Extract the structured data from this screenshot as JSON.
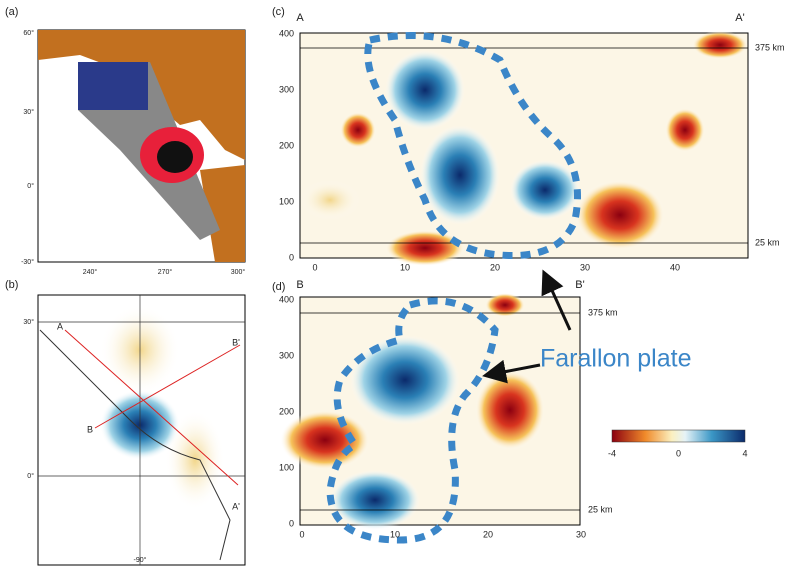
{
  "panels": {
    "a": {
      "label": "(a)",
      "yticks": [
        "60°",
        "30°",
        "0°",
        "-30°"
      ],
      "xticks": [
        "240°",
        "270°",
        "300°"
      ]
    },
    "b": {
      "label": "(b)",
      "yticks": [
        "30°",
        "0°"
      ],
      "xticks": [
        "-90°"
      ],
      "points": [
        "A",
        "B'",
        "B",
        "A'"
      ]
    },
    "c": {
      "label": "(c)",
      "start": "A",
      "end": "A'",
      "yticks": [
        0,
        100,
        200,
        300,
        400
      ],
      "xticks": [
        0,
        10,
        20,
        30,
        40
      ],
      "lines": [
        "375 km",
        "25 km"
      ]
    },
    "d": {
      "label": "(d)",
      "start": "B",
      "end": "B'",
      "yticks": [
        0,
        100,
        200,
        300,
        400
      ],
      "xticks": [
        0,
        10,
        20,
        30
      ],
      "lines": [
        "375 km",
        "25 km"
      ]
    }
  },
  "colorbar": {
    "ticks": [
      -4,
      0,
      4
    ]
  },
  "annotation": "Farallon plate"
}
